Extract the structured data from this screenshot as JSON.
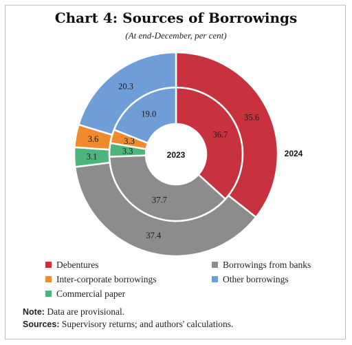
{
  "chart_data": {
    "type": "pie",
    "title": "Chart 4: Sources of Borrowings",
    "subtitle": "(At end-December, per cent)",
    "categories": [
      "Debentures",
      "Borrowings from banks",
      "Commercial paper",
      "Inter-corporate borrowings",
      "Other borrowings"
    ],
    "colors": [
      "#c8323f",
      "#8c8c8c",
      "#4cb57b",
      "#f08a2c",
      "#6e9dd7"
    ],
    "series": [
      {
        "name": "2023",
        "values": [
          36.7,
          37.7,
          3.3,
          3.3,
          19.0
        ]
      },
      {
        "name": "2024",
        "values": [
          35.6,
          37.4,
          3.1,
          3.6,
          20.3
        ]
      }
    ],
    "legend": [
      {
        "label": "Debentures",
        "color": "#c8323f"
      },
      {
        "label": "Borrowings from banks",
        "color": "#8c8c8c"
      },
      {
        "label": "Inter-corporate borrowings",
        "color": "#f08a2c"
      },
      {
        "label": "Other borrowings",
        "color": "#6e9dd7"
      },
      {
        "label": "Commercial paper",
        "color": "#4cb57b"
      }
    ]
  },
  "notes": {
    "note_label": "Note:",
    "note_text": "Data are provisional.",
    "sources_label": "Sources:",
    "sources_text": "Supervisory returns; and authors' calculations."
  }
}
